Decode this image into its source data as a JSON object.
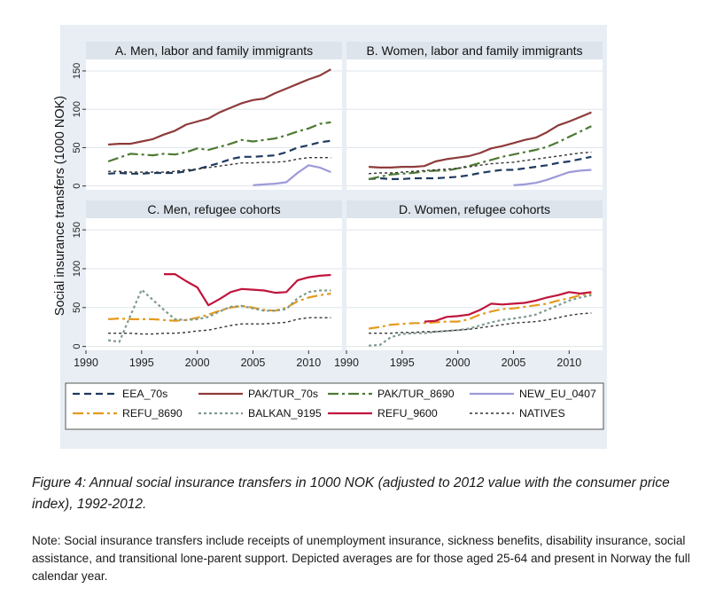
{
  "caption": "Figure 4: Annual social insurance transfers in 1000 NOK (adjusted to 2012 value with the consumer price index), 1992-2012.",
  "note": "Note: Social insurance transfers include receipts of unemployment insurance, sickness benefits, disability insurance, social assistance, and transitional lone-parent support. Depicted averages are for those aged 25-64 and present in Norway the full calendar year.",
  "colors": {
    "outer_bg": "#e8eef4",
    "panel_bg": "#ffffff",
    "title_bg": "#dde4ec",
    "grid": "#dfe5ec"
  },
  "chart_data": {
    "type": "line",
    "ylabel": "Social insurance transfers (1000 NOK)",
    "yticks": [
      0,
      50,
      100,
      150
    ],
    "xticks": [
      1990,
      1995,
      2000,
      2005,
      2010
    ],
    "xlim": [
      1990,
      2013
    ],
    "ylim": [
      -5,
      165
    ],
    "grid": true,
    "legend_position": "bottom",
    "legend": [
      {
        "label": "EEA_70s",
        "color": "#1f3a5f",
        "dash": "8 5",
        "width": 2.2
      },
      {
        "label": "PAK/TUR_70s",
        "color": "#8e3b3b",
        "dash": "",
        "width": 2.2
      },
      {
        "label": "PAK/TUR_8690",
        "color": "#4e7a33",
        "dash": "12 4 3 4",
        "width": 2.2
      },
      {
        "label": "NEW_EU_0407",
        "color": "#9d9ad8",
        "dash": "",
        "width": 2.2
      },
      {
        "label": "REFU_8690",
        "color": "#e59a1c",
        "dash": "12 4 3 4",
        "width": 2.2
      },
      {
        "label": "BALKAN_9195",
        "color": "#7f9a8e",
        "dash": "3 3",
        "width": 2.2
      },
      {
        "label": "REFU_9600",
        "color": "#c0153c",
        "dash": "",
        "width": 2.2
      },
      {
        "label": "NATIVES",
        "color": "#333333",
        "dash": "3 3",
        "width": 1.4
      }
    ],
    "panels": [
      {
        "title": "A. Men, labor and family immigrants",
        "series": [
          {
            "name": "EEA_70s",
            "x": [
              1992,
              1993,
              1994,
              1995,
              1996,
              1997,
              1998,
              1999,
              2000,
              2001,
              2002,
              2003,
              2004,
              2005,
              2006,
              2007,
              2008,
              2009,
              2010,
              2011,
              2012
            ],
            "y": [
              16,
              17,
              16,
              16,
              17,
              17,
              17,
              19,
              22,
              26,
              30,
              35,
              38,
              38,
              39,
              40,
              44,
              50,
              53,
              57,
              59
            ]
          },
          {
            "name": "PAK/TUR_70s",
            "x": [
              1992,
              1993,
              1994,
              1995,
              1996,
              1997,
              1998,
              1999,
              2000,
              2001,
              2002,
              2003,
              2004,
              2005,
              2006,
              2007,
              2008,
              2009,
              2010,
              2011,
              2012
            ],
            "y": [
              54,
              55,
              55,
              58,
              61,
              67,
              72,
              80,
              84,
              88,
              96,
              102,
              108,
              112,
              114,
              121,
              127,
              133,
              139,
              144,
              152
            ]
          },
          {
            "name": "PAK/TUR_8690",
            "x": [
              1992,
              1993,
              1994,
              1995,
              1996,
              1997,
              1998,
              1999,
              2000,
              2001,
              2002,
              2003,
              2004,
              2005,
              2006,
              2007,
              2008,
              2009,
              2010,
              2011,
              2012
            ],
            "y": [
              32,
              37,
              42,
              41,
              40,
              42,
              41,
              44,
              49,
              47,
              51,
              55,
              60,
              58,
              60,
              62,
              66,
              71,
              75,
              81,
              83
            ]
          },
          {
            "name": "NEW_EU_0407",
            "x": [
              2005,
              2006,
              2007,
              2008,
              2009,
              2010,
              2011,
              2012
            ],
            "y": [
              1,
              2,
              3,
              5,
              17,
              27,
              24,
              18
            ]
          },
          {
            "name": "NATIVES",
            "x": [
              1992,
              1993,
              1994,
              1995,
              1996,
              1997,
              1998,
              1999,
              2000,
              2001,
              2002,
              2003,
              2004,
              2005,
              2006,
              2007,
              2008,
              2009,
              2010,
              2011,
              2012
            ],
            "y": [
              19,
              19,
              18,
              18,
              18,
              18,
              19,
              21,
              22,
              24,
              26,
              28,
              30,
              30,
              31,
              31,
              32,
              35,
              37,
              37,
              37
            ]
          }
        ]
      },
      {
        "title": "B. Women, labor and family immigrants",
        "series": [
          {
            "name": "EEA_70s",
            "x": [
              1992,
              1993,
              1994,
              1995,
              1996,
              1997,
              1998,
              1999,
              2000,
              2001,
              2002,
              2003,
              2004,
              2005,
              2006,
              2007,
              2008,
              2009,
              2010,
              2011,
              2012
            ],
            "y": [
              9,
              10,
              9,
              9,
              10,
              10,
              10,
              11,
              12,
              14,
              17,
              19,
              21,
              21,
              23,
              25,
              27,
              30,
              32,
              35,
              38
            ]
          },
          {
            "name": "PAK/TUR_70s",
            "x": [
              1992,
              1993,
              1994,
              1995,
              1996,
              1997,
              1998,
              1999,
              2000,
              2001,
              2002,
              2003,
              2004,
              2005,
              2006,
              2007,
              2008,
              2009,
              2010,
              2011,
              2012
            ],
            "y": [
              25,
              24,
              24,
              25,
              25,
              26,
              32,
              35,
              37,
              39,
              43,
              49,
              52,
              56,
              60,
              63,
              70,
              79,
              84,
              90,
              96
            ]
          },
          {
            "name": "PAK/TUR_8690",
            "x": [
              1992,
              1993,
              1994,
              1995,
              1996,
              1997,
              1998,
              1999,
              2000,
              2001,
              2002,
              2003,
              2004,
              2005,
              2006,
              2007,
              2008,
              2009,
              2010,
              2011,
              2012
            ],
            "y": [
              9,
              12,
              15,
              16,
              17,
              19,
              20,
              20,
              23,
              26,
              30,
              34,
              38,
              41,
              44,
              47,
              51,
              57,
              64,
              71,
              78
            ]
          },
          {
            "name": "NEW_EU_0407",
            "x": [
              2005,
              2006,
              2007,
              2008,
              2009,
              2010,
              2011,
              2012
            ],
            "y": [
              1,
              2,
              4,
              8,
              13,
              18,
              20,
              21
            ]
          },
          {
            "name": "NATIVES",
            "x": [
              1992,
              1993,
              1994,
              1995,
              1996,
              1997,
              1998,
              1999,
              2000,
              2001,
              2002,
              2003,
              2004,
              2005,
              2006,
              2007,
              2008,
              2009,
              2010,
              2011,
              2012
            ],
            "y": [
              16,
              17,
              17,
              18,
              19,
              20,
              21,
              22,
              23,
              25,
              27,
              29,
              30,
              31,
              33,
              35,
              37,
              39,
              41,
              43,
              44
            ]
          }
        ]
      },
      {
        "title": "C. Men, refugee cohorts",
        "series": [
          {
            "name": "REFU_8690",
            "x": [
              1992,
              1993,
              1994,
              1995,
              1996,
              1997,
              1998,
              1999,
              2000,
              2001,
              2002,
              2003,
              2004,
              2005,
              2006,
              2007,
              2008,
              2009,
              2010,
              2011,
              2012
            ],
            "y": [
              35,
              36,
              35,
              35,
              35,
              34,
              33,
              34,
              37,
              41,
              46,
              50,
              52,
              50,
              47,
              46,
              50,
              58,
              63,
              66,
              68
            ]
          },
          {
            "name": "BALKAN_9195",
            "x": [
              1992,
              1993,
              1994,
              1995,
              1996,
              1997,
              1998,
              1999,
              2000,
              2001,
              2002,
              2003,
              2004,
              2005,
              2006,
              2007,
              2008,
              2009,
              2010,
              2011,
              2012
            ],
            "y": [
              8,
              6,
              40,
              73,
              60,
              47,
              35,
              34,
              35,
              38,
              45,
              51,
              52,
              49,
              46,
              46,
              48,
              62,
              70,
              72,
              72
            ]
          },
          {
            "name": "REFU_9600",
            "x": [
              1997,
              1998,
              1999,
              2000,
              2001,
              2002,
              2003,
              2004,
              2005,
              2006,
              2007,
              2008,
              2009,
              2010,
              2011,
              2012
            ],
            "y": [
              93,
              93,
              84,
              76,
              53,
              61,
              70,
              74,
              73,
              72,
              69,
              70,
              85,
              89,
              91,
              92
            ]
          },
          {
            "name": "NATIVES",
            "x": [
              1992,
              1993,
              1994,
              1995,
              1996,
              1997,
              1998,
              1999,
              2000,
              2001,
              2002,
              2003,
              2004,
              2005,
              2006,
              2007,
              2008,
              2009,
              2010,
              2011,
              2012
            ],
            "y": [
              17,
              17,
              17,
              16,
              16,
              17,
              17,
              18,
              20,
              21,
              24,
              27,
              29,
              29,
              29,
              30,
              31,
              35,
              37,
              37,
              37
            ]
          }
        ]
      },
      {
        "title": "D. Women, refugee cohorts",
        "series": [
          {
            "name": "REFU_8690",
            "x": [
              1992,
              1993,
              1994,
              1995,
              1996,
              1997,
              1998,
              1999,
              2000,
              2001,
              2002,
              2003,
              2004,
              2005,
              2006,
              2007,
              2008,
              2009,
              2010,
              2011,
              2012
            ],
            "y": [
              23,
              25,
              28,
              29,
              30,
              30,
              31,
              32,
              32,
              35,
              41,
              45,
              48,
              49,
              51,
              53,
              55,
              59,
              62,
              66,
              68
            ]
          },
          {
            "name": "BALKAN_9195",
            "x": [
              1992,
              1993,
              1994,
              1995,
              1996,
              1997,
              1998,
              1999,
              2000,
              2001,
              2002,
              2003,
              2004,
              2005,
              2006,
              2007,
              2008,
              2009,
              2010,
              2011,
              2012
            ],
            "y": [
              1,
              2,
              12,
              16,
              17,
              17,
              19,
              20,
              21,
              23,
              27,
              31,
              34,
              36,
              38,
              41,
              47,
              53,
              59,
              63,
              66
            ]
          },
          {
            "name": "REFU_9600",
            "x": [
              1997,
              1998,
              1999,
              2000,
              2001,
              2002,
              2003,
              2004,
              2005,
              2006,
              2007,
              2008,
              2009,
              2010,
              2011,
              2012
            ],
            "y": [
              32,
              33,
              38,
              39,
              41,
              47,
              55,
              54,
              55,
              56,
              59,
              63,
              66,
              70,
              68,
              70
            ]
          },
          {
            "name": "NATIVES",
            "x": [
              1992,
              1993,
              1994,
              1995,
              1996,
              1997,
              1998,
              1999,
              2000,
              2001,
              2002,
              2003,
              2004,
              2005,
              2006,
              2007,
              2008,
              2009,
              2010,
              2011,
              2012
            ],
            "y": [
              17,
              17,
              17,
              18,
              18,
              19,
              19,
              20,
              21,
              22,
              24,
              26,
              28,
              30,
              31,
              32,
              34,
              37,
              40,
              42,
              43
            ]
          }
        ]
      }
    ]
  }
}
